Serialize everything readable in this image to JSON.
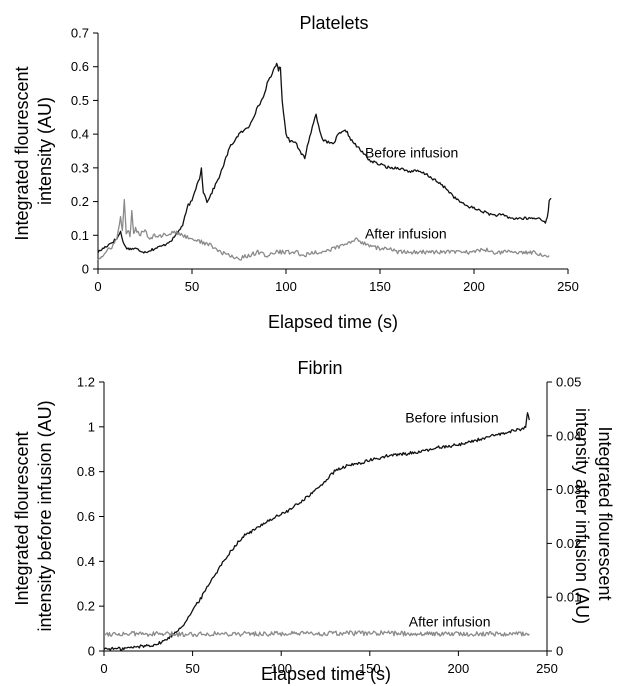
{
  "chart_data": [
    {
      "type": "line",
      "title": "Platelets",
      "xlabel": "Elapsed time (s)",
      "ylabel_lines": [
        "Integrated flourescent",
        "intensity (AU)"
      ],
      "xlim": [
        0,
        250
      ],
      "ylim": [
        0,
        0.7
      ],
      "xticks": [
        "0",
        "50",
        "100",
        "150",
        "200",
        "250"
      ],
      "yticks": [
        "0",
        "0.1",
        "0.2",
        "0.3",
        "0.4",
        "0.5",
        "0.6",
        "0.7"
      ],
      "grid": false,
      "series": [
        {
          "name": "Before infusion",
          "color": "#111111",
          "x": [
            0,
            5,
            10,
            12,
            14,
            16,
            20,
            25,
            30,
            35,
            40,
            45,
            48,
            50,
            52,
            54,
            55,
            56,
            58,
            60,
            65,
            70,
            75,
            80,
            85,
            88,
            90,
            92,
            94,
            95,
            96,
            97,
            98,
            100,
            102,
            105,
            107,
            110,
            112,
            114,
            116,
            118,
            120,
            125,
            128,
            132,
            135,
            140,
            145,
            150,
            155,
            160,
            165,
            170,
            175,
            180,
            185,
            190,
            195,
            200,
            205,
            210,
            215,
            220,
            225,
            230,
            235,
            238,
            239,
            240,
            241
          ],
          "y": [
            0.05,
            0.07,
            0.09,
            0.11,
            0.07,
            0.06,
            0.06,
            0.05,
            0.06,
            0.07,
            0.09,
            0.13,
            0.19,
            0.2,
            0.24,
            0.27,
            0.3,
            0.23,
            0.2,
            0.22,
            0.28,
            0.36,
            0.4,
            0.42,
            0.48,
            0.51,
            0.55,
            0.57,
            0.6,
            0.61,
            0.59,
            0.6,
            0.5,
            0.4,
            0.38,
            0.38,
            0.35,
            0.33,
            0.38,
            0.42,
            0.46,
            0.41,
            0.38,
            0.37,
            0.4,
            0.41,
            0.38,
            0.35,
            0.32,
            0.31,
            0.3,
            0.3,
            0.29,
            0.29,
            0.28,
            0.26,
            0.24,
            0.21,
            0.19,
            0.18,
            0.17,
            0.16,
            0.16,
            0.15,
            0.15,
            0.15,
            0.15,
            0.14,
            0.15,
            0.2,
            0.21
          ]
        },
        {
          "name": "After infusion",
          "color": "#8a8a8a",
          "x": [
            0,
            3,
            6,
            8,
            10,
            12,
            13,
            14,
            15,
            16,
            17,
            18,
            19,
            20,
            22,
            25,
            27,
            30,
            35,
            40,
            45,
            50,
            55,
            60,
            65,
            70,
            75,
            80,
            85,
            90,
            95,
            100,
            105,
            110,
            115,
            120,
            125,
            130,
            135,
            138,
            140,
            145,
            150,
            155,
            160,
            170,
            180,
            190,
            200,
            205,
            210,
            220,
            230,
            240
          ],
          "y": [
            0.03,
            0.04,
            0.06,
            0.07,
            0.09,
            0.15,
            0.12,
            0.2,
            0.1,
            0.12,
            0.09,
            0.17,
            0.1,
            0.12,
            0.1,
            0.12,
            0.09,
            0.1,
            0.1,
            0.11,
            0.1,
            0.09,
            0.08,
            0.07,
            0.05,
            0.04,
            0.03,
            0.04,
            0.05,
            0.04,
            0.05,
            0.05,
            0.05,
            0.04,
            0.05,
            0.05,
            0.06,
            0.07,
            0.08,
            0.09,
            0.08,
            0.07,
            0.06,
            0.06,
            0.05,
            0.05,
            0.05,
            0.05,
            0.05,
            0.06,
            0.05,
            0.05,
            0.05,
            0.04
          ]
        }
      ],
      "annotations": [
        {
          "text": "Before infusion",
          "x": 142,
          "y": 0.33
        },
        {
          "text": "After infusion",
          "x": 142,
          "y": 0.09
        }
      ]
    },
    {
      "type": "line",
      "title": "Fibrin",
      "xlabel": "Elapsed time (s)",
      "ylabel_lines": [
        "Integrated flourescent",
        "intensity before infusion (AU)"
      ],
      "y2label_lines": [
        "Integrated flourescent",
        "intensity after infusion (AU)"
      ],
      "xlim": [
        0,
        250
      ],
      "ylim": [
        0,
        1.2
      ],
      "y2lim": [
        0,
        0.05
      ],
      "xticks": [
        "0",
        "50",
        "100",
        "150",
        "200",
        "250"
      ],
      "yticks": [
        "0",
        "0.2",
        "0.4",
        "0.6",
        "0.8",
        "1",
        "1.2"
      ],
      "y2ticks": [
        "0",
        "0.01",
        "0.02",
        "0.03",
        "0.04",
        "0.05"
      ],
      "grid": false,
      "series": [
        {
          "name": "Before infusion",
          "axis": "left",
          "color": "#111111",
          "x": [
            0,
            10,
            20,
            30,
            35,
            40,
            45,
            50,
            55,
            60,
            65,
            70,
            75,
            80,
            85,
            90,
            95,
            100,
            105,
            110,
            115,
            120,
            125,
            130,
            135,
            140,
            145,
            150,
            155,
            160,
            170,
            180,
            190,
            200,
            210,
            220,
            230,
            235,
            238,
            239,
            240
          ],
          "y": [
            0.01,
            0.01,
            0.02,
            0.03,
            0.05,
            0.08,
            0.12,
            0.18,
            0.24,
            0.31,
            0.37,
            0.43,
            0.48,
            0.52,
            0.54,
            0.57,
            0.59,
            0.61,
            0.63,
            0.66,
            0.69,
            0.72,
            0.76,
            0.8,
            0.82,
            0.83,
            0.84,
            0.85,
            0.86,
            0.87,
            0.88,
            0.89,
            0.91,
            0.92,
            0.94,
            0.96,
            0.98,
            0.99,
            1.0,
            1.06,
            1.03
          ]
        },
        {
          "name": "After infusion",
          "axis": "right",
          "color": "#8a8a8a",
          "x": [
            0,
            20,
            40,
            60,
            80,
            100,
            120,
            140,
            160,
            180,
            200,
            220,
            240
          ],
          "y": [
            0.0032,
            0.0032,
            0.0031,
            0.0032,
            0.0032,
            0.0032,
            0.0032,
            0.0033,
            0.0033,
            0.0032,
            0.0032,
            0.0032,
            0.0032
          ]
        }
      ],
      "annotations": [
        {
          "text": "Before infusion",
          "x": 170,
          "y": 1.02
        },
        {
          "text": "After infusion",
          "x": 172,
          "y": 0.11
        }
      ]
    }
  ]
}
